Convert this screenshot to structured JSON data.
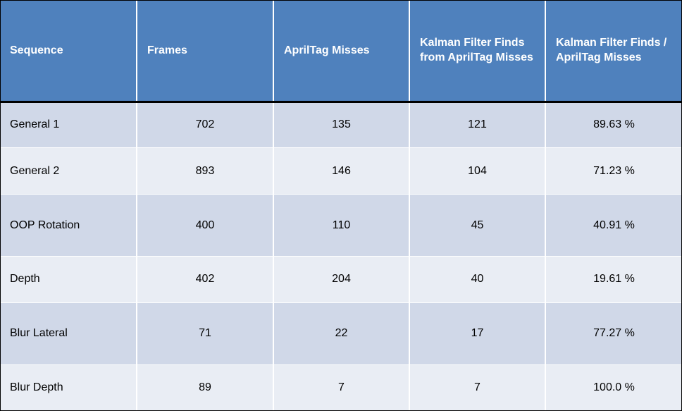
{
  "table": {
    "headers": [
      "Sequence",
      "Frames",
      "AprilTag Misses",
      "Kalman Filter Finds from AprilTag Misses",
      "Kalman Filter Finds / AprilTag Misses"
    ],
    "rows": [
      {
        "sequence": "General 1",
        "frames": "702",
        "apriltag_misses": "135",
        "kalman_finds": "121",
        "ratio": "89.63 %"
      },
      {
        "sequence": "General 2",
        "frames": "893",
        "apriltag_misses": "146",
        "kalman_finds": "104",
        "ratio": "71.23 %"
      },
      {
        "sequence": "OOP Rotation",
        "frames": "400",
        "apriltag_misses": "110",
        "kalman_finds": "45",
        "ratio": "40.91 %"
      },
      {
        "sequence": "Depth",
        "frames": "402",
        "apriltag_misses": "204",
        "kalman_finds": "40",
        "ratio": "19.61 %"
      },
      {
        "sequence": "Blur Lateral",
        "frames": "71",
        "apriltag_misses": "22",
        "kalman_finds": "17",
        "ratio": "77.27 %"
      },
      {
        "sequence": "Blur Depth",
        "frames": "89",
        "apriltag_misses": "7",
        "kalman_finds": "7",
        "ratio": "100.0 %"
      }
    ]
  },
  "colors": {
    "header_bg": "#4f81bd",
    "row_band_dark": "#d0d8e8",
    "row_band_light": "#e9edf4"
  }
}
